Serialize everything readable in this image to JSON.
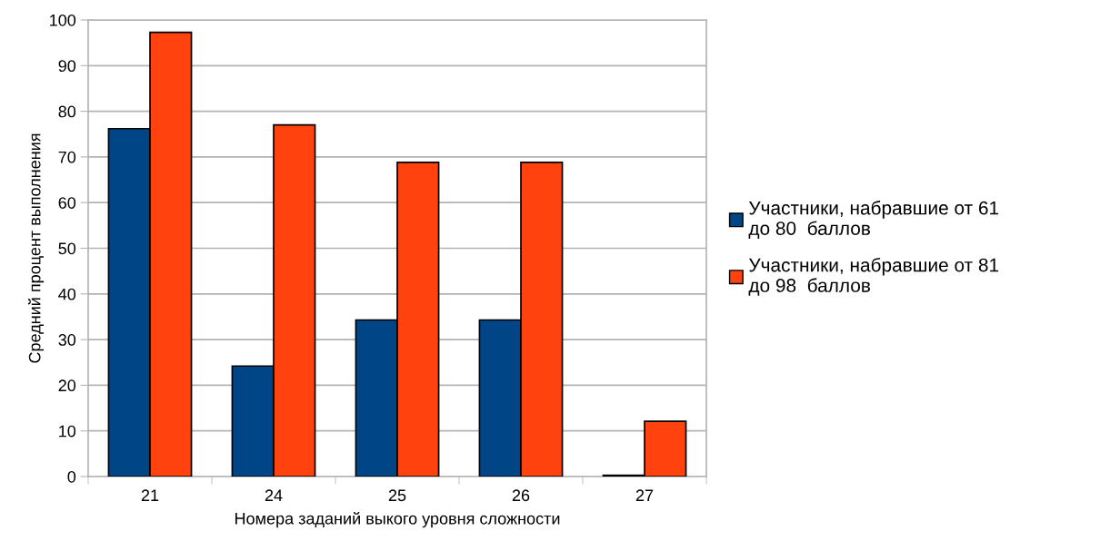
{
  "chart_data": {
    "type": "bar",
    "xlabel": "Номера заданий выкого уровня сложности",
    "ylabel": "Средний процент выполнения",
    "categories": [
      "21",
      "24",
      "25",
      "26",
      "27"
    ],
    "series": [
      {
        "name": "Участники, набравшие от 61\nдо 80  баллов",
        "color": "#004586",
        "values": [
          76.2,
          24.2,
          34.3,
          34.3,
          0.3
        ]
      },
      {
        "name": "Участники, набравшие от 81\nдо 98  баллов",
        "color": "#ff420e",
        "values": [
          97.3,
          77.0,
          68.8,
          68.8,
          12.1
        ]
      }
    ],
    "ylim": [
      0,
      100
    ],
    "yticks": [
      0,
      10,
      20,
      30,
      40,
      50,
      60,
      70,
      80,
      90,
      100
    ],
    "grid": "y",
    "legend": "right"
  }
}
